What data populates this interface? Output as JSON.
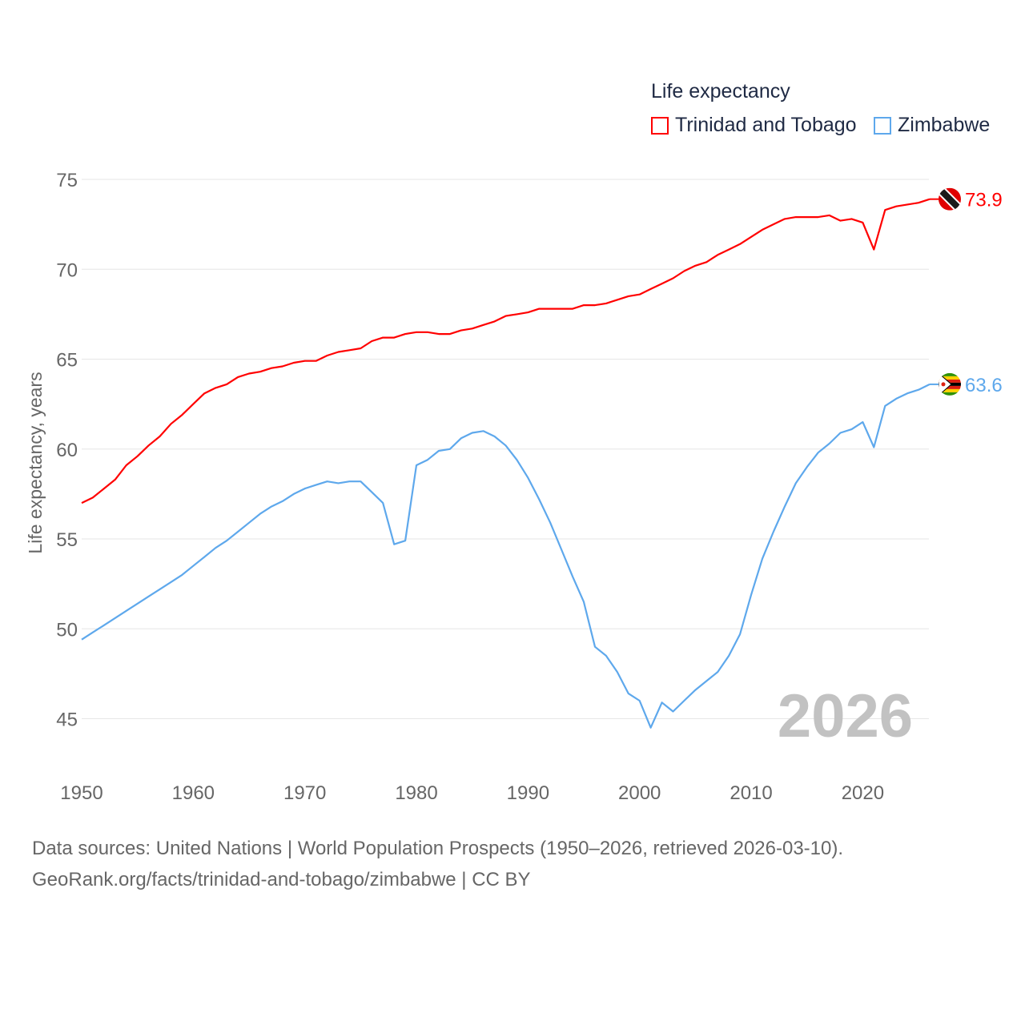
{
  "chart_data": {
    "type": "line",
    "title": "Life expectancy",
    "xlabel": "",
    "ylabel": "Life expectancy, years",
    "xlim": [
      1950,
      2026
    ],
    "ylim": [
      44,
      75.5
    ],
    "yticks": [
      45,
      50,
      55,
      60,
      65,
      70,
      75
    ],
    "xticks": [
      1950,
      1960,
      1970,
      1980,
      1990,
      2000,
      2010,
      2020
    ],
    "grid": true,
    "legend_position": "top-right",
    "watermark_year": "2026",
    "x": [
      1950,
      1951,
      1952,
      1953,
      1954,
      1955,
      1956,
      1957,
      1958,
      1959,
      1960,
      1961,
      1962,
      1963,
      1964,
      1965,
      1966,
      1967,
      1968,
      1969,
      1970,
      1971,
      1972,
      1973,
      1974,
      1975,
      1976,
      1977,
      1978,
      1979,
      1980,
      1981,
      1982,
      1983,
      1984,
      1985,
      1986,
      1987,
      1988,
      1989,
      1990,
      1991,
      1992,
      1993,
      1994,
      1995,
      1996,
      1997,
      1998,
      1999,
      2000,
      2001,
      2002,
      2003,
      2004,
      2005,
      2006,
      2007,
      2008,
      2009,
      2010,
      2011,
      2012,
      2013,
      2014,
      2015,
      2016,
      2017,
      2018,
      2019,
      2020,
      2021,
      2022,
      2023,
      2024,
      2025,
      2026
    ],
    "series": [
      {
        "name": "Trinidad and Tobago",
        "color": "#ff0000",
        "end_label": "73.9",
        "values": [
          57.0,
          57.3,
          57.8,
          58.3,
          59.1,
          59.6,
          60.2,
          60.7,
          61.4,
          61.9,
          62.5,
          63.1,
          63.4,
          63.6,
          64.0,
          64.2,
          64.3,
          64.5,
          64.6,
          64.8,
          64.9,
          64.9,
          65.2,
          65.4,
          65.5,
          65.6,
          66.0,
          66.2,
          66.2,
          66.4,
          66.5,
          66.5,
          66.4,
          66.4,
          66.6,
          66.7,
          66.9,
          67.1,
          67.4,
          67.5,
          67.6,
          67.8,
          67.8,
          67.8,
          67.8,
          68.0,
          68.0,
          68.1,
          68.3,
          68.5,
          68.6,
          68.9,
          69.2,
          69.5,
          69.9,
          70.2,
          70.4,
          70.8,
          71.1,
          71.4,
          71.8,
          72.2,
          72.5,
          72.8,
          72.9,
          72.9,
          72.9,
          73.0,
          72.7,
          72.8,
          72.6,
          71.1,
          73.3,
          73.5,
          73.6,
          73.7,
          73.9
        ]
      },
      {
        "name": "Zimbabwe",
        "color": "#5ea8ec",
        "end_label": "63.6",
        "values": [
          49.4,
          49.8,
          50.2,
          50.6,
          51.0,
          51.4,
          51.8,
          52.2,
          52.6,
          53.0,
          53.5,
          54.0,
          54.5,
          54.9,
          55.4,
          55.9,
          56.4,
          56.8,
          57.1,
          57.5,
          57.8,
          58.0,
          58.2,
          58.1,
          58.2,
          58.2,
          57.6,
          57.0,
          54.7,
          54.9,
          59.1,
          59.4,
          59.9,
          60.0,
          60.6,
          60.9,
          61.0,
          60.7,
          60.2,
          59.4,
          58.4,
          57.2,
          55.9,
          54.4,
          52.9,
          51.5,
          49.0,
          48.5,
          47.6,
          46.4,
          46.0,
          44.5,
          45.9,
          45.4,
          46.0,
          46.6,
          47.1,
          47.6,
          48.5,
          49.7,
          51.9,
          53.9,
          55.4,
          56.8,
          58.1,
          59.0,
          59.8,
          60.3,
          60.9,
          61.1,
          61.5,
          60.1,
          62.4,
          62.8,
          63.1,
          63.3,
          63.6
        ]
      }
    ]
  },
  "footer": {
    "line1": "Data sources: United Nations | World Population Prospects (1950–2026, retrieved 2026-03-10).",
    "line2": "GeoRank.org/facts/trinidad-and-tobago/zimbabwe | CC BY"
  }
}
